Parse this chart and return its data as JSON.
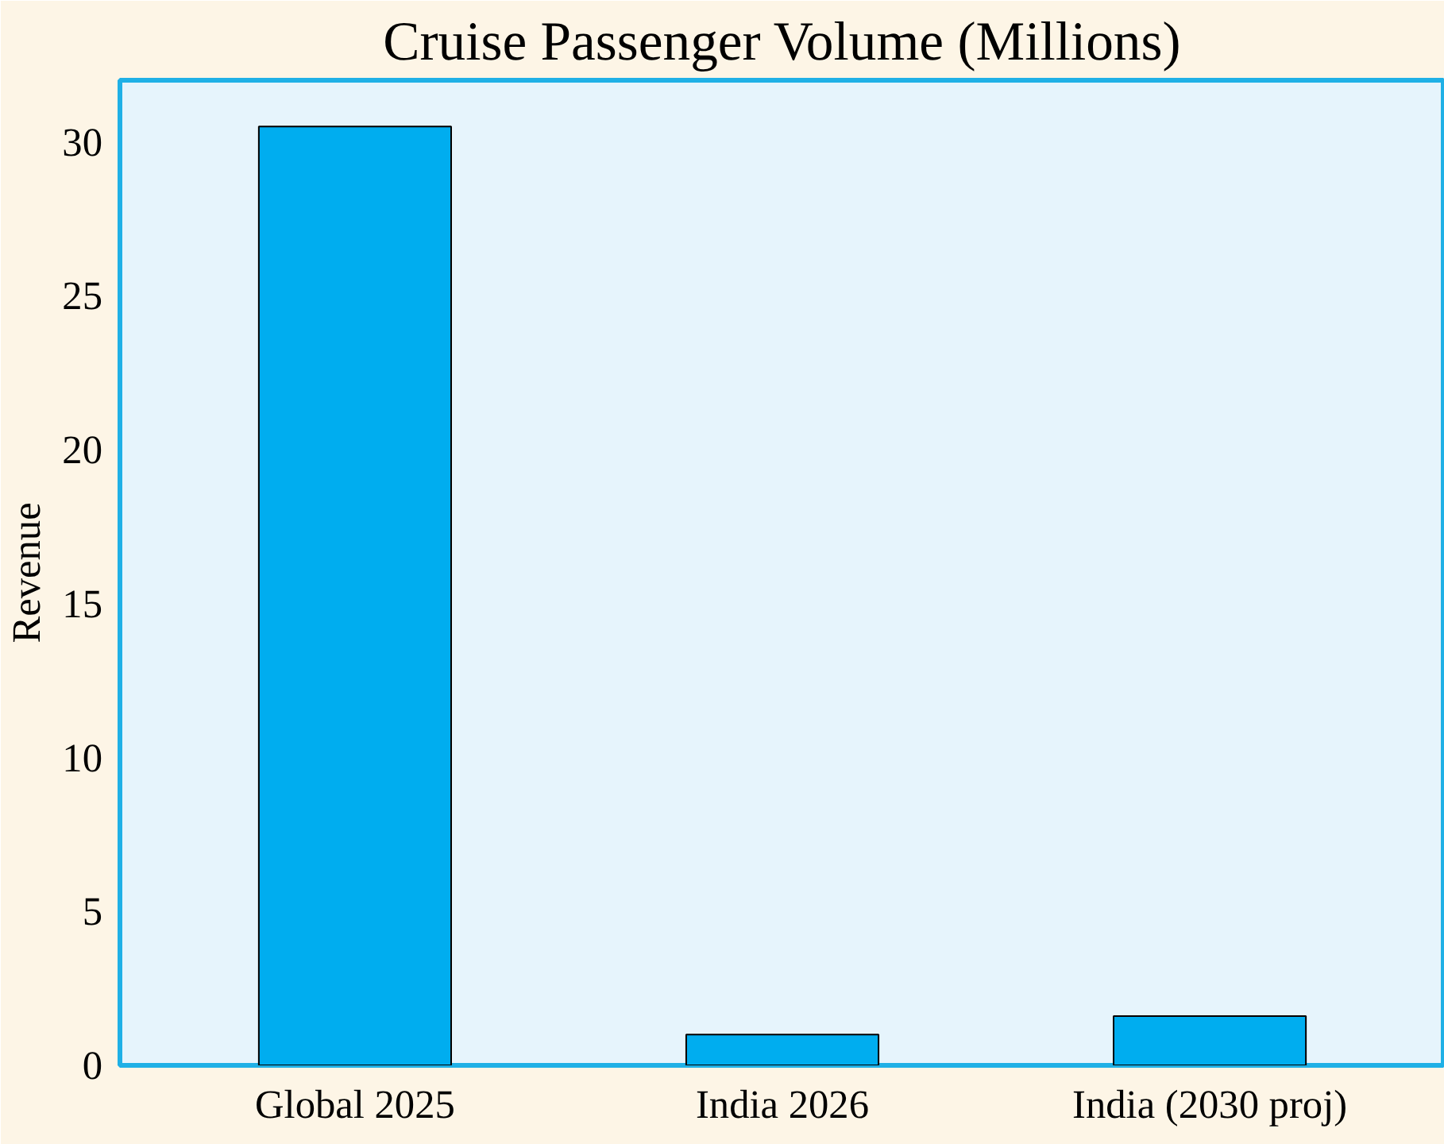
{
  "chart_data": {
    "type": "bar",
    "title": "Cruise Passenger Volume (Millions)",
    "ylabel": "Revenue",
    "categories": [
      "Global 2025",
      "India 2026",
      "India (2030 proj)"
    ],
    "values": [
      30.5,
      1,
      1.6
    ],
    "color": "#00adef",
    "ylim": [
      0,
      32
    ],
    "yticks": [
      0,
      5,
      10,
      15,
      20,
      25,
      30
    ],
    "grid": false
  }
}
